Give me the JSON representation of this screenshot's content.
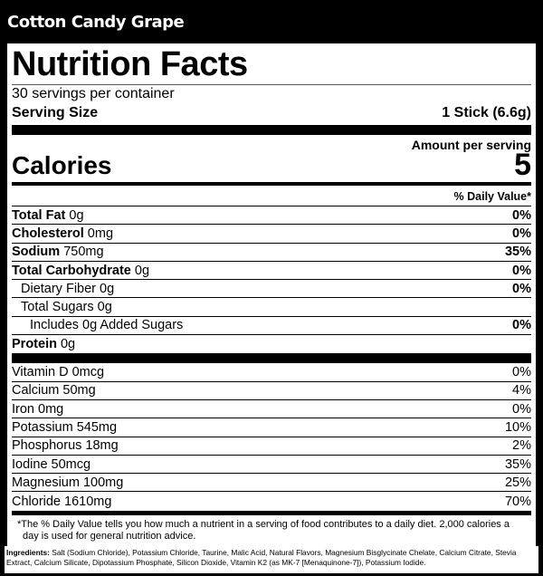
{
  "flavor": "Cotton Candy Grape",
  "title": "Nutrition Facts",
  "servings_per_container": "30 servings per container",
  "serving_size_label": "Serving Size",
  "serving_size_value": "1 Stick (6.6g)",
  "amount_per_serving": "Amount per serving",
  "calories_label": "Calories",
  "calories_value": "5",
  "daily_value_header": "% Daily Value*",
  "nutrients": [
    {
      "name": "Total Fat",
      "amount": "0g",
      "dv": "0%"
    },
    {
      "name": "Cholesterol",
      "amount": "0mg",
      "dv": "0%"
    },
    {
      "name": "Sodium",
      "amount": "750mg",
      "dv": "35%"
    },
    {
      "name": "Total Carbohydrate",
      "amount": "0g",
      "dv": "0%"
    },
    {
      "name": "Dietary Fiber 0g",
      "amount": "",
      "dv": "0%"
    },
    {
      "name": "Total Sugars 0g",
      "amount": "",
      "dv": ""
    },
    {
      "name": "Includes 0g Added Sugars",
      "amount": "",
      "dv": "0%"
    },
    {
      "name": "Protein",
      "amount": "0g",
      "dv": ""
    }
  ],
  "micronutrients": [
    {
      "name": "Vitamin D 0mcg",
      "dv": "0%"
    },
    {
      "name": "Calcium 50mg",
      "dv": "4%"
    },
    {
      "name": "Iron 0mg",
      "dv": "0%"
    },
    {
      "name": "Potassium 545mg",
      "dv": "10%"
    },
    {
      "name": "Phosphorus 18mg",
      "dv": "2%"
    },
    {
      "name": "Iodine 50mcg",
      "dv": "35%"
    },
    {
      "name": "Magnesium 100mg",
      "dv": "25%"
    },
    {
      "name": "Chloride 1610mg",
      "dv": "70%"
    }
  ],
  "footnote": "*The % Daily Value tells you how much a nutrient in a serving of food contributes to a daily diet. 2,000 calories a day is used for general nutrition advice.",
  "ingredients_label": "Ingredients:",
  "ingredients": " Salt (Sodium Chloride), Potassium Chloride, Taurine, Malic Acid, Natural Flavors, Magnesium Bisglycinate Chelate, Calcium Citrate, Stevia Extract, Calcium Silicate, Dipotassium Phosphate, Silicon Dioxide, Vitamin K2 (as MK-7 [Menaquinone-7]), Potassium Iodide."
}
